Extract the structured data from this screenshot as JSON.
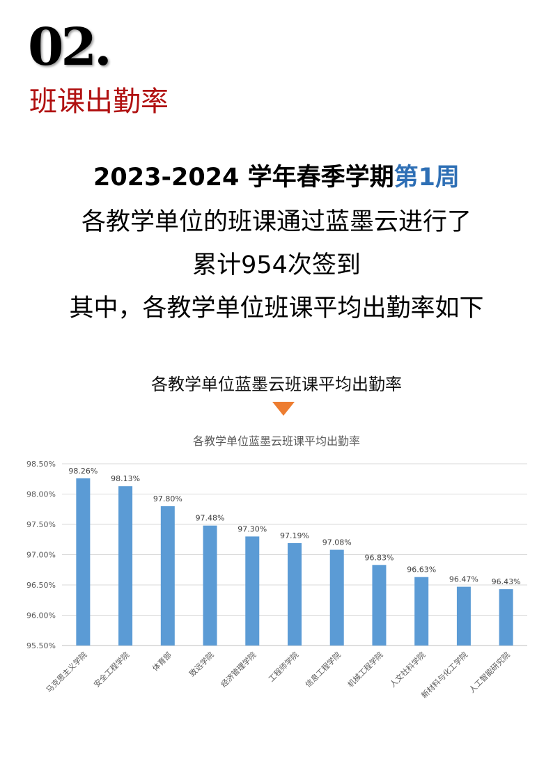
{
  "header": {
    "number": "02.",
    "section": "班课出勤率"
  },
  "intro": {
    "line1_prefix": "2023-2024 学年春季学期",
    "line1_highlight": "第1周",
    "line2": "各教学单位的班课通过蓝墨云进行了",
    "line3": "累计954次签到",
    "line4": "其中，各教学单位班课平均出勤率如下"
  },
  "caption": "各教学单位蓝墨云班课平均出勤率",
  "colors": {
    "bar": "#5b9bd5",
    "accent": "#ed7d31",
    "highlight": "#2e6fb5",
    "section": "#b01010"
  },
  "chart_data": {
    "type": "bar",
    "title": "各教学单位蓝墨云班课平均出勤率",
    "categories": [
      "马克思主义学院",
      "安全工程学院",
      "体育部",
      "致远学院",
      "经济管理学院",
      "工程师学院",
      "信息工程学院",
      "机械工程学院",
      "人文社科学院",
      "新材料与化工学院",
      "人工智能研究院"
    ],
    "values": [
      98.26,
      98.13,
      97.8,
      97.48,
      97.3,
      97.19,
      97.08,
      96.83,
      96.63,
      96.47,
      96.43
    ],
    "data_labels": [
      "98.26%",
      "98.13%",
      "97.80%",
      "97.48%",
      "97.30%",
      "97.19%",
      "97.08%",
      "96.83%",
      "96.63%",
      "96.47%",
      "96.43%"
    ],
    "yticks": [
      "95.50%",
      "96.00%",
      "96.50%",
      "97.00%",
      "97.50%",
      "98.00%",
      "98.50%"
    ],
    "ylim": [
      95.5,
      98.5
    ],
    "grid": true
  }
}
